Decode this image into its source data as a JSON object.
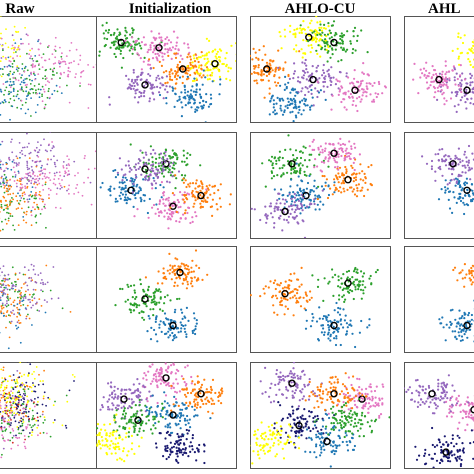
{
  "columns": [
    {
      "title": "Raw"
    },
    {
      "title": "Initialization"
    },
    {
      "title": "AHLO-CU"
    },
    {
      "title": "AHL"
    }
  ],
  "chart_data": {
    "type": "scatter",
    "rows": 4,
    "description_kind": "2D embedding scatter panels, 4 datasets x 4 methods",
    "cluster_colors": [
      "#1f77b4",
      "#2ca02c",
      "#ff7f0e",
      "#e377c2",
      "#9467bd",
      "#ffff00",
      "#191970",
      "#d62728"
    ],
    "marker": {
      "shape": "open circle",
      "color": "#000000"
    },
    "panels": [
      {
        "row": 0,
        "method": "Raw",
        "clusters": [
          {
            "color": "#9467bd",
            "x": 0.05,
            "y": 0.35
          },
          {
            "color": "#ffff00",
            "x": 0.12,
            "y": 0.3
          },
          {
            "color": "#2ca02c",
            "x": 0.35,
            "y": 0.6
          },
          {
            "color": "#1f77b4",
            "x": 0.25,
            "y": 0.7
          },
          {
            "color": "#e377c2",
            "x": 0.55,
            "y": 0.5
          }
        ]
      },
      {
        "row": 0,
        "method": "Initialization",
        "clusters": [
          {
            "color": "#2ca02c",
            "x": 0.18,
            "y": 0.25
          },
          {
            "color": "#e377c2",
            "x": 0.45,
            "y": 0.3
          },
          {
            "color": "#ff7f0e",
            "x": 0.62,
            "y": 0.5
          },
          {
            "color": "#9467bd",
            "x": 0.35,
            "y": 0.65
          },
          {
            "color": "#ffff00",
            "x": 0.85,
            "y": 0.45
          },
          {
            "color": "#1f77b4",
            "x": 0.7,
            "y": 0.75
          }
        ]
      },
      {
        "row": 0,
        "method": "AHLO-CU",
        "clusters": [
          {
            "color": "#ffff00",
            "x": 0.42,
            "y": 0.2
          },
          {
            "color": "#2ca02c",
            "x": 0.6,
            "y": 0.25
          },
          {
            "color": "#ff7f0e",
            "x": 0.12,
            "y": 0.5
          },
          {
            "color": "#9467bd",
            "x": 0.45,
            "y": 0.6
          },
          {
            "color": "#e377c2",
            "x": 0.75,
            "y": 0.7
          },
          {
            "color": "#1f77b4",
            "x": 0.3,
            "y": 0.8
          }
        ]
      },
      {
        "row": 0,
        "method": "AHL",
        "clusters": [
          {
            "color": "#ffff00",
            "x": 0.55,
            "y": 0.35
          },
          {
            "color": "#9467bd",
            "x": 0.45,
            "y": 0.7
          },
          {
            "color": "#e377c2",
            "x": 0.25,
            "y": 0.6
          }
        ]
      },
      {
        "row": 1,
        "method": "Raw",
        "clusters": [
          {
            "color": "#1f77b4",
            "x": 0.12,
            "y": 0.45
          },
          {
            "color": "#2ca02c",
            "x": 0.2,
            "y": 0.7
          },
          {
            "color": "#ff7f0e",
            "x": 0.3,
            "y": 0.6
          },
          {
            "color": "#e377c2",
            "x": 0.55,
            "y": 0.45
          },
          {
            "color": "#9467bd",
            "x": 0.45,
            "y": 0.3
          }
        ]
      },
      {
        "row": 1,
        "method": "Initialization",
        "clusters": [
          {
            "color": "#2ca02c",
            "x": 0.5,
            "y": 0.3
          },
          {
            "color": "#1f77b4",
            "x": 0.25,
            "y": 0.55
          },
          {
            "color": "#e377c2",
            "x": 0.55,
            "y": 0.7
          },
          {
            "color": "#ff7f0e",
            "x": 0.75,
            "y": 0.6
          },
          {
            "color": "#9467bd",
            "x": 0.35,
            "y": 0.35
          }
        ]
      },
      {
        "row": 1,
        "method": "AHLO-CU",
        "clusters": [
          {
            "color": "#2ca02c",
            "x": 0.3,
            "y": 0.3
          },
          {
            "color": "#1f77b4",
            "x": 0.4,
            "y": 0.6
          },
          {
            "color": "#ff7f0e",
            "x": 0.7,
            "y": 0.45
          },
          {
            "color": "#e377c2",
            "x": 0.6,
            "y": 0.2
          },
          {
            "color": "#9467bd",
            "x": 0.25,
            "y": 0.75
          }
        ]
      },
      {
        "row": 1,
        "method": "AHL",
        "clusters": [
          {
            "color": "#1f77b4",
            "x": 0.45,
            "y": 0.55
          },
          {
            "color": "#9467bd",
            "x": 0.35,
            "y": 0.3
          }
        ]
      },
      {
        "row": 2,
        "method": "Raw",
        "clusters": [
          {
            "color": "#2ca02c",
            "x": 0.15,
            "y": 0.45
          },
          {
            "color": "#ff7f0e",
            "x": 0.22,
            "y": 0.5
          },
          {
            "color": "#1f77b4",
            "x": 0.1,
            "y": 0.55
          },
          {
            "color": "#9467bd",
            "x": 0.3,
            "y": 0.4
          }
        ]
      },
      {
        "row": 2,
        "method": "Initialization",
        "clusters": [
          {
            "color": "#ff7f0e",
            "x": 0.6,
            "y": 0.25
          },
          {
            "color": "#2ca02c",
            "x": 0.35,
            "y": 0.5
          },
          {
            "color": "#1f77b4",
            "x": 0.55,
            "y": 0.75
          }
        ]
      },
      {
        "row": 2,
        "method": "AHLO-CU",
        "clusters": [
          {
            "color": "#ff7f0e",
            "x": 0.25,
            "y": 0.45
          },
          {
            "color": "#2ca02c",
            "x": 0.7,
            "y": 0.35
          },
          {
            "color": "#1f77b4",
            "x": 0.6,
            "y": 0.75
          }
        ]
      },
      {
        "row": 2,
        "method": "AHL",
        "clusters": [
          {
            "color": "#1f77b4",
            "x": 0.45,
            "y": 0.75
          },
          {
            "color": "#ff7f0e",
            "x": 0.55,
            "y": 0.3
          }
        ]
      },
      {
        "row": 3,
        "method": "Raw",
        "clusters": [
          {
            "color": "#ff7f0e",
            "x": 0.2,
            "y": 0.35
          },
          {
            "color": "#2ca02c",
            "x": 0.28,
            "y": 0.45
          },
          {
            "color": "#191970",
            "x": 0.35,
            "y": 0.4
          },
          {
            "color": "#e377c2",
            "x": 0.15,
            "y": 0.6
          },
          {
            "color": "#9467bd",
            "x": 0.08,
            "y": 0.4
          },
          {
            "color": "#ffff00",
            "x": 0.3,
            "y": 0.3
          },
          {
            "color": "#d62728",
            "x": 0.12,
            "y": 0.55
          }
        ]
      },
      {
        "row": 3,
        "method": "Initialization",
        "clusters": [
          {
            "color": "#e377c2",
            "x": 0.5,
            "y": 0.15
          },
          {
            "color": "#ff7f0e",
            "x": 0.75,
            "y": 0.3
          },
          {
            "color": "#9467bd",
            "x": 0.2,
            "y": 0.35
          },
          {
            "color": "#2ca02c",
            "x": 0.3,
            "y": 0.55
          },
          {
            "color": "#1f77b4",
            "x": 0.55,
            "y": 0.5
          },
          {
            "color": "#191970",
            "x": 0.6,
            "y": 0.8
          },
          {
            "color": "#ffff00",
            "x": 0.1,
            "y": 0.75
          }
        ]
      },
      {
        "row": 3,
        "method": "AHLO-CU",
        "clusters": [
          {
            "color": "#9467bd",
            "x": 0.3,
            "y": 0.2
          },
          {
            "color": "#191970",
            "x": 0.35,
            "y": 0.6
          },
          {
            "color": "#1f77b4",
            "x": 0.55,
            "y": 0.75
          },
          {
            "color": "#e377c2",
            "x": 0.8,
            "y": 0.35
          },
          {
            "color": "#ff7f0e",
            "x": 0.6,
            "y": 0.3
          },
          {
            "color": "#ffff00",
            "x": 0.15,
            "y": 0.75
          },
          {
            "color": "#2ca02c",
            "x": 0.7,
            "y": 0.55
          }
        ]
      },
      {
        "row": 3,
        "method": "AHL",
        "clusters": [
          {
            "color": "#e377c2",
            "x": 0.5,
            "y": 0.45
          },
          {
            "color": "#191970",
            "x": 0.3,
            "y": 0.85
          },
          {
            "color": "#9467bd",
            "x": 0.2,
            "y": 0.3
          }
        ]
      }
    ]
  }
}
